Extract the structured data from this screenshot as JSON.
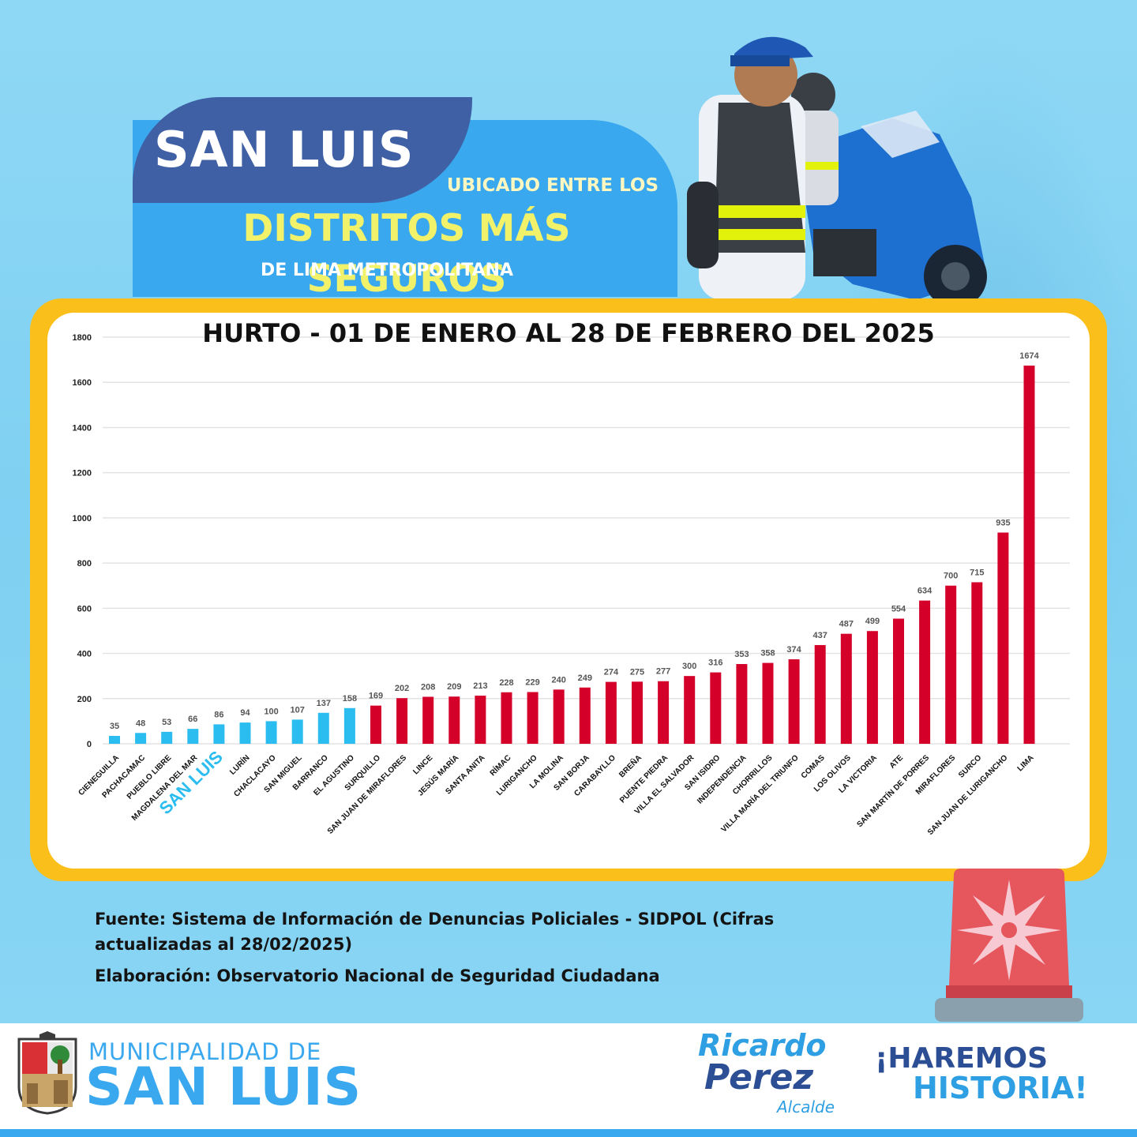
{
  "header": {
    "title": "SAN LUIS",
    "line1": "UBICADO ENTRE LOS",
    "line2": "DISTRITOS MÁS SEGUROS",
    "line3": "DE LIMA METROPOLITANA"
  },
  "chart_data": {
    "type": "bar",
    "title": "HURTO - 01 DE ENERO AL 28 DE FEBRERO DEL 2025",
    "xlabel": "",
    "ylabel": "",
    "ylim": [
      0,
      1800
    ],
    "yticks": [
      0,
      200,
      400,
      600,
      800,
      1000,
      1200,
      1400,
      1600,
      1800
    ],
    "grid": true,
    "highlight_category": "SAN LUIS",
    "colors": {
      "safe": "#2bbdf0",
      "unsafe": "#d4002a",
      "highlight": "#2bbdf0"
    },
    "categories": [
      "CIENEGUILLA",
      "PACHACAMAC",
      "PUEBLO LIBRE",
      "MAGDALENA DEL MAR",
      "SAN LUIS",
      "LURÍN",
      "CHACLACAYO",
      "SAN MIGUEL",
      "BARRANCO",
      "EL AGUSTINO",
      "SURQUILLO",
      "SAN JUAN DE MIRAFLORES",
      "LINCE",
      "JESÚS MARÍA",
      "SANTA ANITA",
      "RÍMAC",
      "LURIGANCHO",
      "LA MOLINA",
      "SAN BORJA",
      "CARABAYLLO",
      "BREÑA",
      "PUENTE PIEDRA",
      "VILLA EL SALVADOR",
      "SAN ISIDRO",
      "INDEPENDENCIA",
      "CHORRILLOS",
      "VILLA MARÍA DEL TRIUNFO",
      "COMAS",
      "LOS OLIVOS",
      "LA VICTORIA",
      "ATE",
      "SAN MARTÍN DE PORRES",
      "MIRAFLORES",
      "SURCO",
      "SAN JUAN DE LURIGANCHO",
      "LIMA"
    ],
    "values": [
      35,
      48,
      53,
      66,
      86,
      94,
      100,
      107,
      137,
      158,
      169,
      202,
      208,
      209,
      213,
      228,
      229,
      240,
      249,
      274,
      275,
      277,
      300,
      316,
      353,
      358,
      374,
      437,
      487,
      499,
      554,
      634,
      700,
      715,
      935,
      1674
    ],
    "bar_groups": [
      "safe",
      "safe",
      "safe",
      "safe",
      "safe",
      "safe",
      "safe",
      "safe",
      "safe",
      "safe",
      "unsafe",
      "unsafe",
      "unsafe",
      "unsafe",
      "unsafe",
      "unsafe",
      "unsafe",
      "unsafe",
      "unsafe",
      "unsafe",
      "unsafe",
      "unsafe",
      "unsafe",
      "unsafe",
      "unsafe",
      "unsafe",
      "unsafe",
      "unsafe",
      "unsafe",
      "unsafe",
      "unsafe",
      "unsafe",
      "unsafe",
      "unsafe",
      "unsafe",
      "unsafe"
    ]
  },
  "source": {
    "fuente": "Fuente: Sistema de Información de Denuncias Policiales - SIDPOL (Cifras actualizadas al 28/02/2025)",
    "elaboracion": "Elaboración: Observatorio Nacional de Seguridad Ciudadana"
  },
  "footer": {
    "muni_line1": "MUNICIPALIDAD DE",
    "muni_line2": "SAN LUIS",
    "mayor_first": "Ricardo",
    "mayor_last": "Perez",
    "mayor_role": "Alcalde",
    "slogan1": "¡HAREMOS",
    "slogan2": "HISTORIA!"
  },
  "icons": [
    "officer-photo",
    "siren-icon",
    "crest-logo"
  ]
}
